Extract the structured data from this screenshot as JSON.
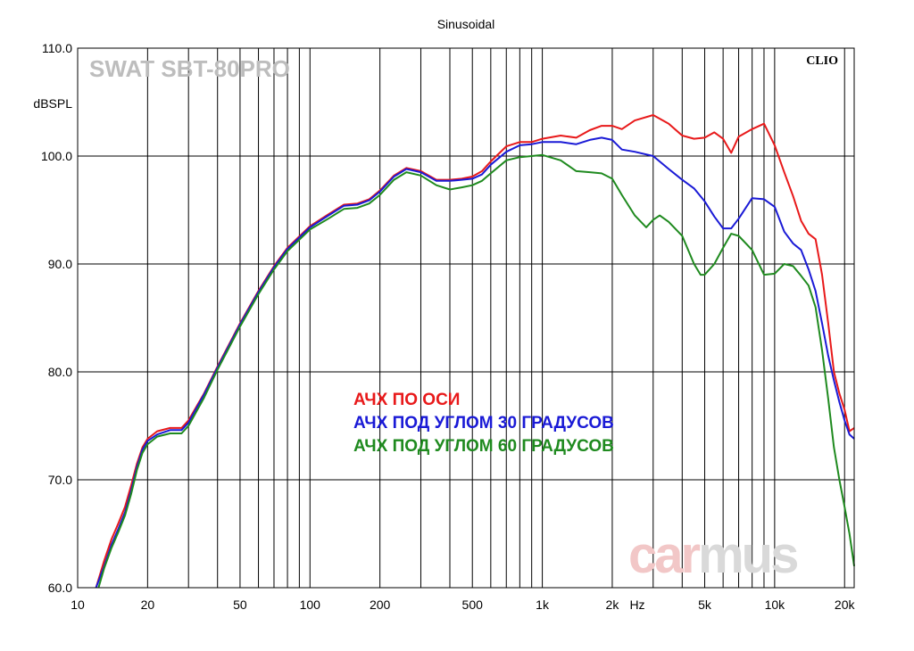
{
  "chart_data": {
    "type": "line",
    "title": "Sinusoidal",
    "subtitle": "SWAT SBT-80PRO",
    "brand_mark": "CLIO",
    "watermark": {
      "part1": "car",
      "part2": "mus",
      "color1": "#f2c7c7",
      "color2": "#d9d9d9"
    },
    "ylabel": "dBSPL",
    "xunit": "Hz",
    "xscale": "log",
    "xlim": [
      10,
      22000
    ],
    "ylim": [
      60,
      110
    ],
    "grid": true,
    "legend_position": "center",
    "y_ticks": [
      {
        "value": 60,
        "label": "60.0"
      },
      {
        "value": 70,
        "label": "70.0"
      },
      {
        "value": 80,
        "label": "80.0"
      },
      {
        "value": 90,
        "label": "90.0"
      },
      {
        "value": 100,
        "label": "100.0"
      },
      {
        "value": 110,
        "label": "110.0"
      }
    ],
    "x_ticks": [
      {
        "value": 10,
        "label": "10"
      },
      {
        "value": 20,
        "label": "20"
      },
      {
        "value": 50,
        "label": "50"
      },
      {
        "value": 100,
        "label": "100"
      },
      {
        "value": 200,
        "label": "200"
      },
      {
        "value": 500,
        "label": "500"
      },
      {
        "value": 1000,
        "label": "1k"
      },
      {
        "value": 2000,
        "label": "2k"
      },
      {
        "value": 5000,
        "label": "5k"
      },
      {
        "value": 10000,
        "label": "10k"
      },
      {
        "value": 20000,
        "label": "20k"
      }
    ],
    "series": [
      {
        "name": "АЧХ ПО ОСИ",
        "color": "#e8191a",
        "points": [
          [
            12,
            60
          ],
          [
            13,
            62.5
          ],
          [
            14,
            64.5
          ],
          [
            15,
            66
          ],
          [
            16,
            67.5
          ],
          [
            17,
            69.5
          ],
          [
            18,
            71.5
          ],
          [
            19,
            73
          ],
          [
            20,
            73.8
          ],
          [
            22,
            74.5
          ],
          [
            25,
            74.8
          ],
          [
            28,
            74.8
          ],
          [
            30,
            75.5
          ],
          [
            35,
            78
          ],
          [
            40,
            80.5
          ],
          [
            50,
            84.5
          ],
          [
            60,
            87.5
          ],
          [
            70,
            89.8
          ],
          [
            80,
            91.5
          ],
          [
            100,
            93.5
          ],
          [
            120,
            94.6
          ],
          [
            140,
            95.5
          ],
          [
            160,
            95.6
          ],
          [
            180,
            96
          ],
          [
            200,
            96.8
          ],
          [
            230,
            98.2
          ],
          [
            260,
            98.9
          ],
          [
            300,
            98.6
          ],
          [
            350,
            97.8
          ],
          [
            400,
            97.8
          ],
          [
            450,
            97.9
          ],
          [
            500,
            98.1
          ],
          [
            550,
            98.6
          ],
          [
            600,
            99.5
          ],
          [
            700,
            100.9
          ],
          [
            800,
            101.3
          ],
          [
            900,
            101.3
          ],
          [
            1000,
            101.6
          ],
          [
            1200,
            101.9
          ],
          [
            1400,
            101.7
          ],
          [
            1600,
            102.4
          ],
          [
            1800,
            102.8
          ],
          [
            2000,
            102.8
          ],
          [
            2200,
            102.5
          ],
          [
            2500,
            103.3
          ],
          [
            3000,
            103.8
          ],
          [
            3500,
            103
          ],
          [
            4000,
            101.9
          ],
          [
            4500,
            101.6
          ],
          [
            5000,
            101.7
          ],
          [
            5500,
            102.2
          ],
          [
            6000,
            101.6
          ],
          [
            6500,
            100.3
          ],
          [
            7000,
            101.8
          ],
          [
            8000,
            102.5
          ],
          [
            9000,
            103
          ],
          [
            10000,
            101
          ],
          [
            11000,
            98.5
          ],
          [
            12000,
            96.3
          ],
          [
            13000,
            94
          ],
          [
            14000,
            92.8
          ],
          [
            15000,
            92.3
          ],
          [
            16000,
            89
          ],
          [
            17000,
            84.5
          ],
          [
            18000,
            80
          ],
          [
            19000,
            78
          ],
          [
            20000,
            76.5
          ],
          [
            21000,
            74.5
          ],
          [
            22000,
            74.8
          ]
        ]
      },
      {
        "name": "АЧХ ПОД УГЛОМ 30 ГРАДУСОВ",
        "color": "#1a1ad6",
        "points": [
          [
            12,
            60
          ],
          [
            13,
            62
          ],
          [
            14,
            64
          ],
          [
            15,
            65.5
          ],
          [
            16,
            67
          ],
          [
            17,
            69
          ],
          [
            18,
            71.2
          ],
          [
            19,
            72.8
          ],
          [
            20,
            73.6
          ],
          [
            22,
            74.2
          ],
          [
            25,
            74.6
          ],
          [
            28,
            74.6
          ],
          [
            30,
            75.3
          ],
          [
            35,
            77.9
          ],
          [
            40,
            80.4
          ],
          [
            50,
            84.4
          ],
          [
            60,
            87.4
          ],
          [
            70,
            89.7
          ],
          [
            80,
            91.4
          ],
          [
            100,
            93.4
          ],
          [
            120,
            94.5
          ],
          [
            140,
            95.4
          ],
          [
            160,
            95.5
          ],
          [
            180,
            95.9
          ],
          [
            200,
            96.7
          ],
          [
            230,
            98.1
          ],
          [
            260,
            98.8
          ],
          [
            300,
            98.5
          ],
          [
            350,
            97.7
          ],
          [
            400,
            97.7
          ],
          [
            450,
            97.8
          ],
          [
            500,
            97.9
          ],
          [
            550,
            98.3
          ],
          [
            600,
            99.2
          ],
          [
            700,
            100.4
          ],
          [
            800,
            101
          ],
          [
            900,
            101.1
          ],
          [
            1000,
            101.3
          ],
          [
            1200,
            101.3
          ],
          [
            1400,
            101.1
          ],
          [
            1600,
            101.5
          ],
          [
            1800,
            101.7
          ],
          [
            2000,
            101.5
          ],
          [
            2200,
            100.6
          ],
          [
            2500,
            100.4
          ],
          [
            3000,
            100
          ],
          [
            3500,
            98.8
          ],
          [
            4000,
            97.8
          ],
          [
            4500,
            97
          ],
          [
            5000,
            95.8
          ],
          [
            5500,
            94.4
          ],
          [
            6000,
            93.3
          ],
          [
            6500,
            93.3
          ],
          [
            7000,
            94.2
          ],
          [
            8000,
            96.1
          ],
          [
            9000,
            96
          ],
          [
            10000,
            95.3
          ],
          [
            11000,
            93
          ],
          [
            12000,
            91.9
          ],
          [
            13000,
            91.3
          ],
          [
            14000,
            89.5
          ],
          [
            15000,
            87.5
          ],
          [
            16000,
            84.5
          ],
          [
            17000,
            81.5
          ],
          [
            18000,
            79.2
          ],
          [
            19000,
            77.2
          ],
          [
            20000,
            75.5
          ],
          [
            21000,
            74.2
          ],
          [
            22000,
            73.8
          ]
        ]
      },
      {
        "name": "АЧХ ПОД УГЛОМ 60 ГРАДУСОВ",
        "color": "#1f8a1f",
        "points": [
          [
            12.3,
            60
          ],
          [
            13,
            61.8
          ],
          [
            14,
            63.7
          ],
          [
            15,
            65.2
          ],
          [
            16,
            66.7
          ],
          [
            17,
            68.7
          ],
          [
            18,
            70.9
          ],
          [
            19,
            72.5
          ],
          [
            20,
            73.3
          ],
          [
            22,
            74
          ],
          [
            25,
            74.3
          ],
          [
            28,
            74.3
          ],
          [
            30,
            75
          ],
          [
            35,
            77.6
          ],
          [
            40,
            80.2
          ],
          [
            50,
            84.2
          ],
          [
            60,
            87.2
          ],
          [
            70,
            89.5
          ],
          [
            80,
            91.2
          ],
          [
            100,
            93.2
          ],
          [
            120,
            94.2
          ],
          [
            140,
            95.1
          ],
          [
            160,
            95.2
          ],
          [
            180,
            95.6
          ],
          [
            200,
            96.4
          ],
          [
            230,
            97.8
          ],
          [
            260,
            98.5
          ],
          [
            300,
            98.2
          ],
          [
            350,
            97.3
          ],
          [
            400,
            96.9
          ],
          [
            450,
            97.1
          ],
          [
            500,
            97.3
          ],
          [
            550,
            97.7
          ],
          [
            600,
            98.4
          ],
          [
            700,
            99.6
          ],
          [
            800,
            99.9
          ],
          [
            900,
            100
          ],
          [
            1000,
            100.1
          ],
          [
            1200,
            99.6
          ],
          [
            1400,
            98.6
          ],
          [
            1600,
            98.5
          ],
          [
            1800,
            98.4
          ],
          [
            2000,
            97.9
          ],
          [
            2200,
            96.4
          ],
          [
            2500,
            94.5
          ],
          [
            2800,
            93.4
          ],
          [
            3000,
            94.1
          ],
          [
            3200,
            94.5
          ],
          [
            3500,
            93.9
          ],
          [
            4000,
            92.6
          ],
          [
            4500,
            90
          ],
          [
            4800,
            89
          ],
          [
            5000,
            89
          ],
          [
            5500,
            90
          ],
          [
            6000,
            91.5
          ],
          [
            6500,
            92.8
          ],
          [
            7000,
            92.6
          ],
          [
            8000,
            91.3
          ],
          [
            9000,
            89
          ],
          [
            10000,
            89.1
          ],
          [
            11000,
            90
          ],
          [
            12000,
            89.8
          ],
          [
            13000,
            88.9
          ],
          [
            14000,
            88
          ],
          [
            15000,
            86
          ],
          [
            16000,
            82
          ],
          [
            17000,
            77.5
          ],
          [
            18000,
            73
          ],
          [
            19000,
            70
          ],
          [
            20000,
            67.5
          ],
          [
            21000,
            65
          ],
          [
            22000,
            62
          ]
        ]
      }
    ]
  }
}
